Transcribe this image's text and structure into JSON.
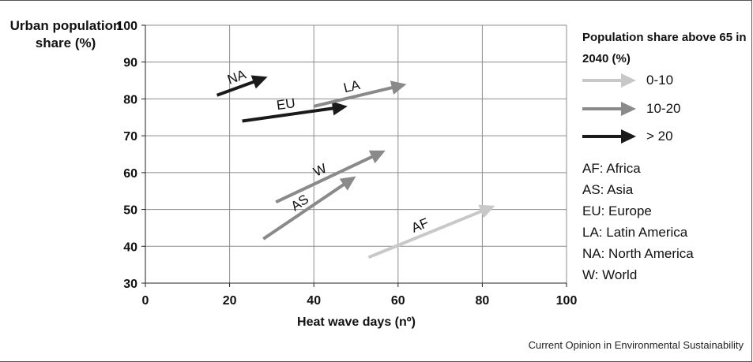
{
  "chart_data": {
    "type": "vector",
    "xlabel": "Heat wave days (nº)",
    "ylabel": "Urban population share (%)",
    "xlim": [
      0,
      100
    ],
    "ylim": [
      30,
      100
    ],
    "xticks": [
      0,
      20,
      40,
      60,
      80,
      100
    ],
    "yticks": [
      30,
      40,
      50,
      60,
      70,
      80,
      90,
      100
    ],
    "grid": true,
    "legend": {
      "title": "Population share above 65 in 2040 (%)",
      "placement": "right",
      "entries": [
        {
          "label": "0-10",
          "color": "#c8c8c8"
        },
        {
          "label": "10-20",
          "color": "#8a8a8a"
        },
        {
          "label": "> 20",
          "color": "#1a1a1a"
        }
      ]
    },
    "arrows": [
      {
        "label": "NA",
        "x_start": 17,
        "y_start": 81,
        "x_end": 29,
        "y_end": 86,
        "class": "> 20"
      },
      {
        "label": "EU",
        "x_start": 23,
        "y_start": 74,
        "x_end": 48,
        "y_end": 78,
        "class": "> 20"
      },
      {
        "label": "LA",
        "x_start": 40,
        "y_start": 78,
        "x_end": 62,
        "y_end": 84,
        "class": "10-20"
      },
      {
        "label": "W",
        "x_start": 31,
        "y_start": 52,
        "x_end": 57,
        "y_end": 66,
        "class": "10-20"
      },
      {
        "label": "AS",
        "x_start": 28,
        "y_start": 42,
        "x_end": 50,
        "y_end": 59,
        "class": "10-20"
      },
      {
        "label": "AF",
        "x_start": 53,
        "y_start": 37,
        "x_end": 83,
        "y_end": 51,
        "class": "0-10"
      }
    ],
    "region_key": [
      "AF: Africa",
      "AS: Asia",
      "EU: Europe",
      "LA: Latin America",
      "NA: North America",
      "W: World"
    ]
  },
  "source": "Current Opinion in Environmental Sustainability"
}
